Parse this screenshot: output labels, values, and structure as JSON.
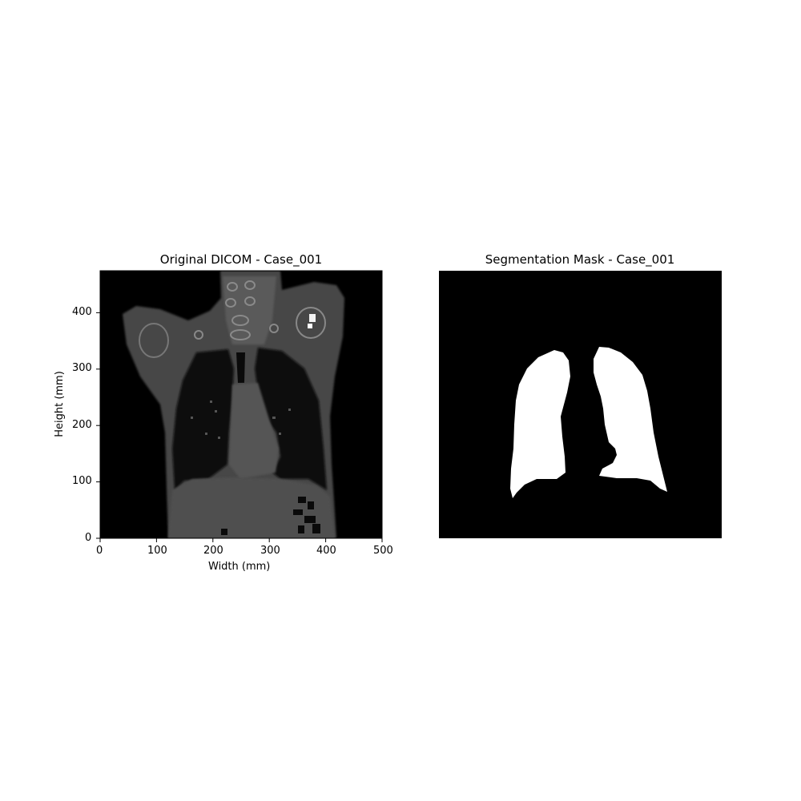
{
  "left_panel": {
    "title": "Original DICOM - Case_001",
    "xlabel": "Width (mm)",
    "ylabel": "Height (mm)",
    "x_ticks": [
      "0",
      "100",
      "200",
      "300",
      "400",
      "500"
    ],
    "y_ticks": [
      "0",
      "100",
      "200",
      "300",
      "400"
    ],
    "image_description": "coronal CT slice of chest"
  },
  "right_panel": {
    "title": "Segmentation Mask - Case_001",
    "image_description": "binary lung segmentation mask"
  },
  "colors": {
    "background": "#000000",
    "mask": "#ffffff",
    "tissue": "#4a4a4a"
  }
}
